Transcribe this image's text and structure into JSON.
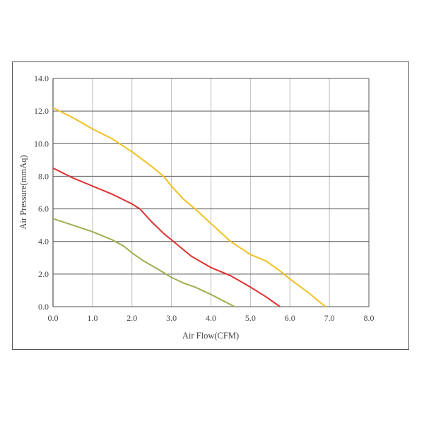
{
  "chart_data": {
    "type": "line",
    "title": "",
    "xlabel": "Air Flow(CFM)",
    "ylabel": "Air Pressure(mmAq)",
    "xlim": [
      0,
      8
    ],
    "ylim": [
      0,
      14
    ],
    "xticks": [
      "0.0",
      "1.0",
      "2.0",
      "3.0",
      "4.0",
      "5.0",
      "6.0",
      "7.0",
      "8.0"
    ],
    "yticks": [
      "0.0",
      "2.0",
      "4.0",
      "6.0",
      "8.0",
      "10.0",
      "12.0",
      "14.0"
    ],
    "grid": true,
    "legend": "none",
    "series": [
      {
        "color": "#f0c020",
        "points": [
          [
            0,
            12.2
          ],
          [
            0.5,
            11.6
          ],
          [
            1,
            10.9
          ],
          [
            1.5,
            10.3
          ],
          [
            2,
            9.5
          ],
          [
            2.5,
            8.6
          ],
          [
            2.8,
            8.0
          ],
          [
            3,
            7.4
          ],
          [
            3.3,
            6.6
          ],
          [
            3.6,
            6.0
          ],
          [
            4,
            5.1
          ],
          [
            4.5,
            4.0
          ],
          [
            5,
            3.2
          ],
          [
            5.4,
            2.8
          ],
          [
            5.8,
            2.1
          ],
          [
            6,
            1.7
          ],
          [
            6.5,
            0.8
          ],
          [
            6.9,
            0
          ]
        ]
      },
      {
        "color": "#e03030",
        "points": [
          [
            0,
            8.5
          ],
          [
            0.5,
            7.9
          ],
          [
            1,
            7.4
          ],
          [
            1.5,
            6.9
          ],
          [
            2,
            6.3
          ],
          [
            2.2,
            6.0
          ],
          [
            2.5,
            5.2
          ],
          [
            2.8,
            4.5
          ],
          [
            3,
            4.1
          ],
          [
            3.5,
            3.1
          ],
          [
            4,
            2.4
          ],
          [
            4.5,
            1.9
          ],
          [
            5,
            1.2
          ],
          [
            5.4,
            0.6
          ],
          [
            5.75,
            0
          ]
        ]
      },
      {
        "color": "#9ab050",
        "points": [
          [
            0,
            5.4
          ],
          [
            0.5,
            5.0
          ],
          [
            1,
            4.6
          ],
          [
            1.5,
            4.1
          ],
          [
            1.8,
            3.7
          ],
          [
            2,
            3.3
          ],
          [
            2.3,
            2.8
          ],
          [
            2.8,
            2.1
          ],
          [
            3,
            1.8
          ],
          [
            3.3,
            1.45
          ],
          [
            3.6,
            1.2
          ],
          [
            4,
            0.75
          ],
          [
            4.6,
            0
          ]
        ]
      }
    ]
  }
}
